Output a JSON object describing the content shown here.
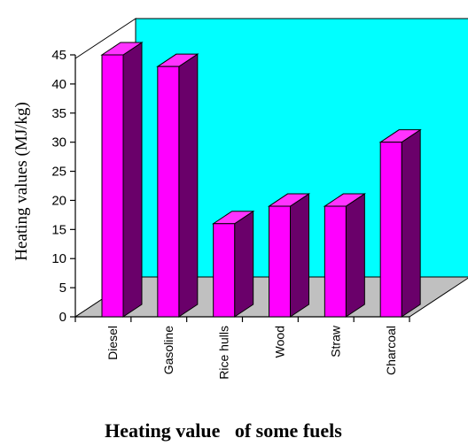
{
  "chart_data": {
    "type": "bar",
    "title": "Heating value   of some fuels",
    "ylabel": "Heating values (MJ/kg)",
    "xlabel": "",
    "categories": [
      "Diesel",
      "Gasoline",
      "Rice hulls",
      "Wood",
      "Straw",
      "Charcoal"
    ],
    "values": [
      45,
      43,
      16,
      19,
      19,
      30
    ],
    "ylim": [
      0,
      45
    ],
    "yticks": [
      0,
      5,
      10,
      15,
      20,
      25,
      30,
      35,
      40,
      45
    ],
    "grid": false,
    "legend": "none",
    "style": "3d-column",
    "colors": {
      "bar_front": "#ff00ff",
      "bar_side": "#6a006a",
      "bar_top": "#ff33ff",
      "back_wall": "#00ffff",
      "floor": "#c0c0c0"
    }
  }
}
